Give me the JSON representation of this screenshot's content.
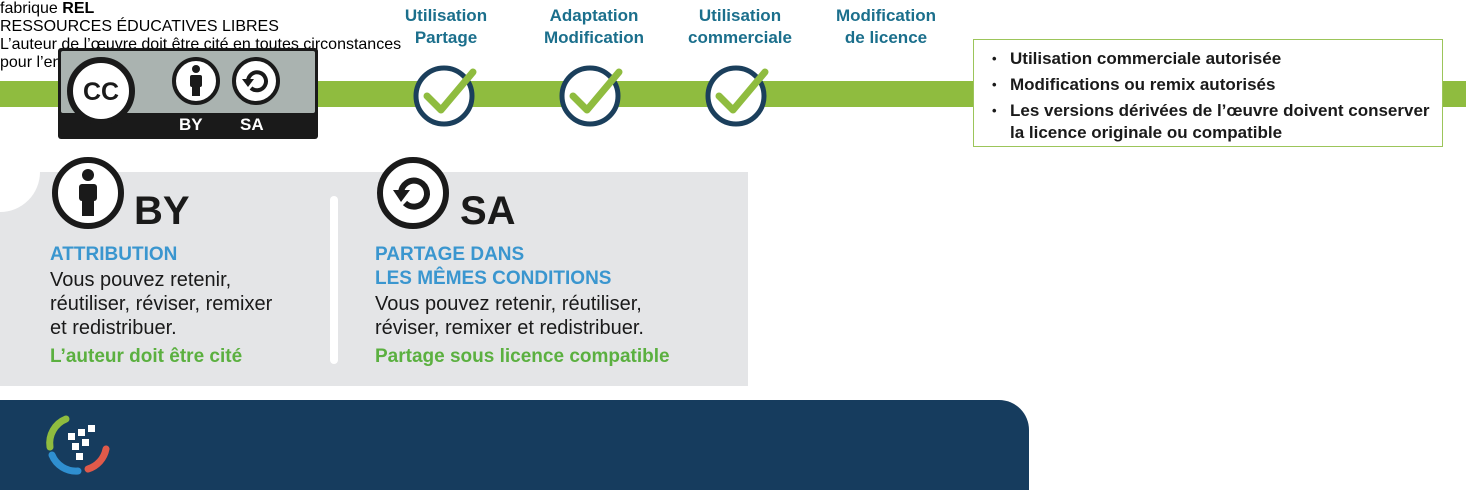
{
  "columns": [
    {
      "line1": "Utilisation",
      "line2": "Partage",
      "check": true
    },
    {
      "line1": "Adaptation",
      "line2": "Modification",
      "check": true
    },
    {
      "line1": "Utilisation",
      "line2": "commerciale",
      "check": true
    },
    {
      "line1": "Modification",
      "line2": "de licence",
      "check": false
    }
  ],
  "badge": {
    "by": "BY",
    "sa": "SA",
    "cc": "CC"
  },
  "bullets": [
    "Utilisation commerciale autorisée",
    "Modifications ou remix autorisés",
    "Les versions dérivées de l’œuvre doivent conserver la licence originale ou compatible"
  ],
  "by_section": {
    "label": "BY",
    "title": "ATTRIBUTION",
    "desc_lines": [
      "Vous pouvez retenir,",
      "réutiliser, réviser, remixer",
      "et redistribuer."
    ],
    "emphasis": "L’auteur doit être cité"
  },
  "sa_section": {
    "label": "SA",
    "title_lines": [
      "PARTAGE DANS",
      "LES MÊMES CONDITIONS"
    ],
    "desc_lines": [
      "Vous pouvez retenir, réutiliser,",
      "réviser, remixer et redistribuer."
    ],
    "emphasis": "Partage sous licence compatible"
  },
  "footer": {
    "brand_light": "fabrique",
    "brand_bold": "REL",
    "brand_sub": "RESSOURCES ÉDUCATIVES LIBRES",
    "note_lines": [
      "L’auteur de l’œuvre doit être cité en toutes circonstances",
      "pour l’ensemble de ces licences."
    ]
  },
  "colors": {
    "green": "#8fbc3f",
    "teal": "#1b6f8c",
    "blue": "#3a96cf",
    "navy": "#163c5e",
    "check_ring": "#1b3f5c"
  }
}
